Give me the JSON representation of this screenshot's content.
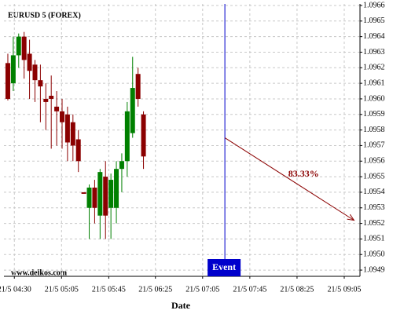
{
  "chart_data": {
    "type": "candlestick",
    "title": "EURUSD 5 (FOREX)",
    "x_label": "Date",
    "source": "www.delkos.com",
    "x": [
      0,
      1,
      2,
      3,
      4,
      5,
      6,
      7,
      8,
      9,
      10,
      11,
      12,
      13,
      14,
      15,
      16,
      17,
      18,
      19,
      20,
      21,
      22,
      23,
      24,
      25
    ],
    "open": [
      1.09623,
      1.0961,
      1.09628,
      1.0964,
      1.09629,
      1.09622,
      1.09612,
      1.096,
      1.09602,
      1.09595,
      1.09592,
      1.0959,
      1.09585,
      1.09574,
      1.0954,
      1.0953,
      1.09543,
      1.09525,
      1.0955,
      1.0953,
      1.0953,
      1.09555,
      1.0956,
      1.09578,
      1.09616,
      1.0959
    ],
    "high": [
      1.09629,
      1.0964,
      1.09642,
      1.09643,
      1.09638,
      1.09625,
      1.09622,
      1.0961,
      1.09615,
      1.09605,
      1.096,
      1.09595,
      1.0959,
      1.0958,
      1.0954,
      1.09545,
      1.09548,
      1.09555,
      1.0956,
      1.09552,
      1.0956,
      1.09565,
      1.09598,
      1.09627,
      1.0962,
      1.09592
    ],
    "low": [
      1.09599,
      1.09605,
      1.0962,
      1.09613,
      1.096,
      1.09598,
      1.09585,
      1.0958,
      1.09568,
      1.0957,
      1.09568,
      1.0956,
      1.0956,
      1.09553,
      1.0954,
      1.0951,
      1.0952,
      1.0951,
      1.0951,
      1.0951,
      1.0952,
      1.0954,
      1.0955,
      1.09575,
      1.09595,
      1.09555
    ],
    "close": [
      1.096,
      1.09628,
      1.0964,
      1.09625,
      1.09618,
      1.09612,
      1.09608,
      1.09598,
      1.096,
      1.09592,
      1.09585,
      1.09572,
      1.0957,
      1.0956,
      1.09539,
      1.09543,
      1.0953,
      1.09553,
      1.09525,
      1.09548,
      1.09555,
      1.0956,
      1.09592,
      1.09607,
      1.096,
      1.09563
    ],
    "up_color": "#008000",
    "down_color": "#8b0000",
    "xlim": [
      -0.72,
      64.9
    ],
    "xticks": [
      {
        "value": 1.2,
        "label": "21/5 04:30"
      },
      {
        "value": 9.9,
        "label": "21/5 05:05"
      },
      {
        "value": 18.6,
        "label": "21/5 05:45"
      },
      {
        "value": 27.2,
        "label": "21/5 06:25"
      },
      {
        "value": 35.9,
        "label": "21/5 07:05"
      },
      {
        "value": 44.6,
        "label": "21/5 07:45"
      },
      {
        "value": 53.3,
        "label": "21/5 08:25"
      },
      {
        "value": 62,
        "label": "21/5 09:05"
      }
    ],
    "ylim": [
      1.09486,
      1.09661
    ],
    "yticks": [
      1.0966,
      1.0965,
      1.0964,
      1.0963,
      1.0962,
      1.0961,
      {
        "value": 1.096,
        "label": "1.0960"
      },
      1.0959,
      1.0958,
      1.0957,
      1.0956,
      1.0955,
      1.0954,
      1.0953,
      1.0952,
      1.0951,
      {
        "value": 1.095,
        "label": "1.0950"
      },
      1.0949
    ],
    "grid": true,
    "event": {
      "x": 40,
      "label": "Event",
      "color": "#0000cc"
    },
    "arrow": {
      "x": [
        40,
        63.8
      ],
      "y": [
        1.09575,
        1.09522
      ],
      "label": "83.33%",
      "color": "#8b0000"
    }
  }
}
